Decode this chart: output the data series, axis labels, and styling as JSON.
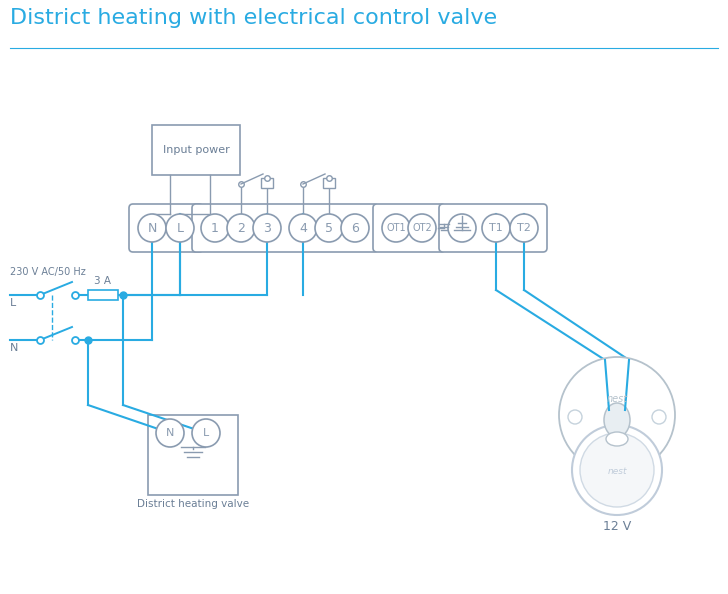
{
  "title": "District heating with electrical control valve",
  "title_color": "#29abe2",
  "title_fontsize": 16,
  "bg_color": "#ffffff",
  "line_color": "#29abe2",
  "box_color": "#8a9bb0",
  "text_color": "#6b7f96",
  "input_power_label": "Input power",
  "district_heating_label": "District heating valve",
  "nest_label": "12 V",
  "left_label_ac": "230 V AC/50 Hz",
  "left_label_L": "L",
  "left_label_N": "N",
  "fuse_label": "3 A",
  "ground_sym": "⏚"
}
